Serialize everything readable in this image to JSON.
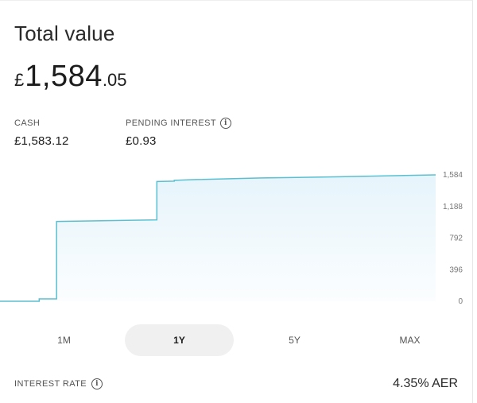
{
  "header": {
    "title": "Total value",
    "total_currency": "£",
    "total_main": "1,584",
    "total_decimal": ".05"
  },
  "stats": {
    "cash_label": "CASH",
    "cash_value": "£1,583.12",
    "pending_label": "PENDING INTEREST",
    "pending_value": "£0.93",
    "pending_info_icon": "info-icon"
  },
  "chart_data": {
    "type": "area",
    "title": "",
    "xlabel": "",
    "ylabel": "",
    "ylim": [
      0,
      1584
    ],
    "y_ticks": [
      "1,584",
      "1,188",
      "792",
      "396",
      "0"
    ],
    "y_tick_values": [
      1584,
      1188,
      792,
      396,
      0
    ],
    "grid": false,
    "line_color": "#5bbfcf",
    "fill_color": "#e6f4fb",
    "series": [
      {
        "x": [
          0,
          0.09,
          0.09,
          0.13,
          0.13,
          0.36,
          0.36,
          0.4,
          0.4,
          0.45,
          0.6,
          0.78,
          1.0
        ],
        "values": [
          0,
          0,
          30,
          30,
          1000,
          1020,
          1500,
          1505,
          1515,
          1525,
          1545,
          1560,
          1584
        ]
      }
    ]
  },
  "range_tabs": {
    "items": [
      {
        "label": "1M",
        "active": false
      },
      {
        "label": "1Y",
        "active": true
      },
      {
        "label": "5Y",
        "active": false
      },
      {
        "label": "MAX",
        "active": false
      }
    ]
  },
  "interest": {
    "label": "INTEREST RATE",
    "value": "4.35% AER",
    "info_icon": "info-icon"
  }
}
